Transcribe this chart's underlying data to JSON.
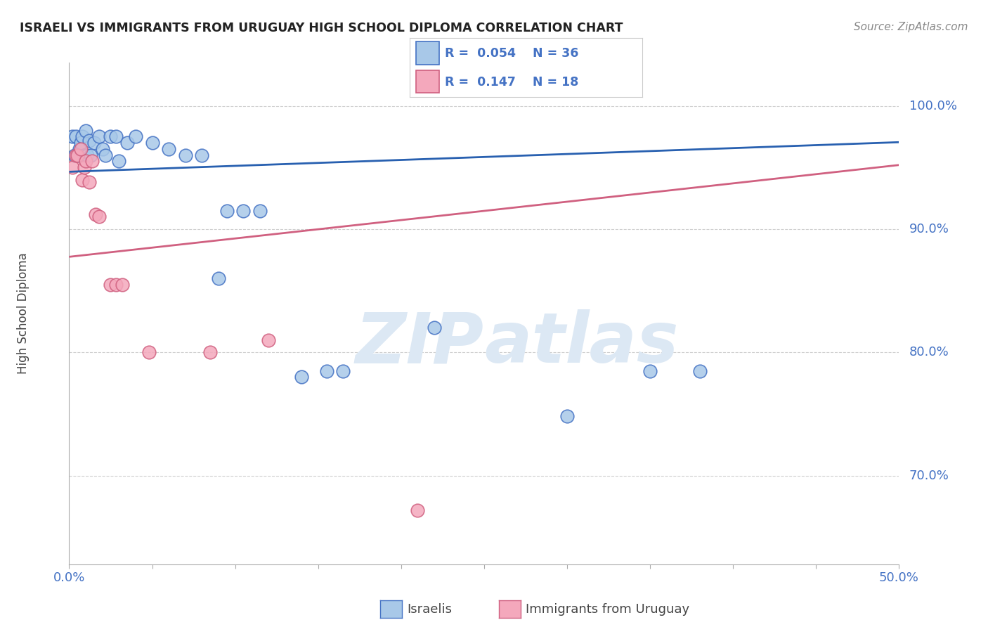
{
  "title": "ISRAELI VS IMMIGRANTS FROM URUGUAY HIGH SCHOOL DIPLOMA CORRELATION CHART",
  "source": "Source: ZipAtlas.com",
  "ylabel": "High School Diploma",
  "legend_label_blue": "Israelis",
  "legend_label_pink": "Immigrants from Uruguay",
  "legend_r_blue": "0.054",
  "legend_n_blue": "36",
  "legend_r_pink": "0.147",
  "legend_n_pink": "18",
  "xmin": 0.0,
  "xmax": 0.5,
  "ymin": 0.628,
  "ymax": 1.035,
  "yticks": [
    0.7,
    0.8,
    0.9,
    1.0
  ],
  "ytick_labels": [
    "70.0%",
    "80.0%",
    "90.0%",
    "100.0%"
  ],
  "blue_x": [
    0.002,
    0.003,
    0.004,
    0.005,
    0.006,
    0.007,
    0.008,
    0.009,
    0.01,
    0.011,
    0.012,
    0.013,
    0.015,
    0.018,
    0.02,
    0.022,
    0.025,
    0.028,
    0.03,
    0.035,
    0.04,
    0.05,
    0.06,
    0.07,
    0.08,
    0.09,
    0.095,
    0.105,
    0.115,
    0.14,
    0.155,
    0.165,
    0.22,
    0.3,
    0.35,
    0.38
  ],
  "blue_y": [
    0.975,
    0.96,
    0.975,
    0.96,
    0.965,
    0.97,
    0.975,
    0.96,
    0.98,
    0.96,
    0.972,
    0.96,
    0.97,
    0.975,
    0.965,
    0.96,
    0.975,
    0.975,
    0.955,
    0.97,
    0.975,
    0.97,
    0.965,
    0.96,
    0.96,
    0.86,
    0.915,
    0.915,
    0.915,
    0.78,
    0.785,
    0.785,
    0.82,
    0.748,
    0.785,
    0.785
  ],
  "pink_x": [
    0.002,
    0.004,
    0.005,
    0.007,
    0.008,
    0.009,
    0.01,
    0.012,
    0.014,
    0.016,
    0.018,
    0.025,
    0.028,
    0.032,
    0.048,
    0.085,
    0.12,
    0.21
  ],
  "pink_y": [
    0.95,
    0.96,
    0.96,
    0.965,
    0.94,
    0.95,
    0.955,
    0.938,
    0.955,
    0.912,
    0.91,
    0.855,
    0.855,
    0.855,
    0.8,
    0.8,
    0.81,
    0.672
  ],
  "blue_line_x": [
    0.0,
    0.5
  ],
  "blue_line_y": [
    0.9465,
    0.9705
  ],
  "pink_line_x": [
    0.0,
    0.5
  ],
  "pink_line_y": [
    0.8775,
    0.952
  ],
  "blue_color": "#a8c8e8",
  "pink_color": "#f4a8bc",
  "blue_edge_color": "#4472c4",
  "pink_edge_color": "#d06080",
  "blue_line_color": "#2860b0",
  "pink_line_color": "#d06080",
  "grid_color": "#d0d0d0",
  "watermark_color": "#dce8f4",
  "title_color": "#222222",
  "axis_label_color": "#444444",
  "tick_color": "#4472c4",
  "background_color": "#ffffff"
}
